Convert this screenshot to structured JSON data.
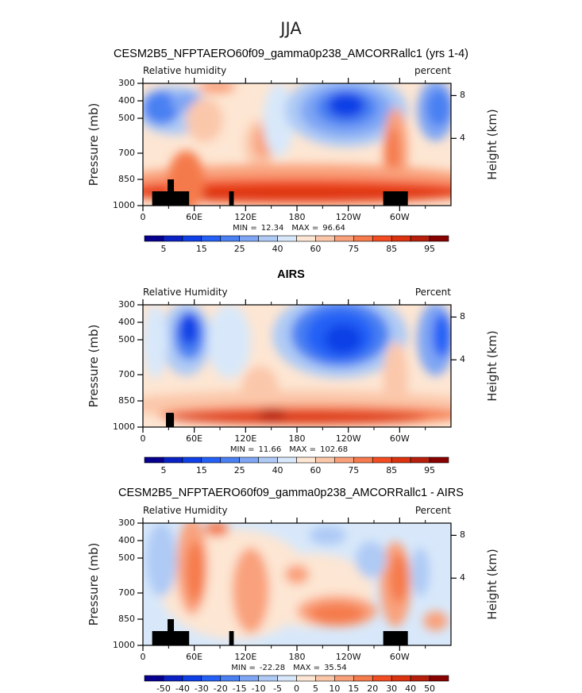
{
  "figure_title": "JJA",
  "chart_data": [
    {
      "type": "heatmap",
      "title": "CESM2B5_NFPTAERO60f09_gamma0p238_AMCORRallc1 (yrs 1-4)",
      "left_label": "Relative humidity",
      "right_label": "percent",
      "ylabel": "Pressure (mb)",
      "y2label": "Height (km)",
      "xticks": [
        "0",
        "60E",
        "120E",
        "180",
        "120W",
        "60W"
      ],
      "yticks": [
        "300",
        "400",
        "500",
        "700",
        "850",
        "1000"
      ],
      "ylim": [
        1000,
        300
      ],
      "y2ticks": [
        "8",
        "4"
      ],
      "min_max": {
        "min_label": "MIN =",
        "min": "12.34",
        "max_label": "MAX =",
        "max": "96.64"
      },
      "colorbar_labels": [
        "5",
        "15",
        "25",
        "40",
        "60",
        "75",
        "85",
        "95"
      ],
      "colorbar_label_every": 2
    },
    {
      "type": "heatmap",
      "title": "AIRS",
      "left_label": "Relative Humidity",
      "right_label": "Percent",
      "ylabel": "Pressure (mb)",
      "y2label": "Height (km)",
      "xticks": [
        "0",
        "60E",
        "120E",
        "180",
        "120W",
        "60W"
      ],
      "yticks": [
        "300",
        "400",
        "500",
        "700",
        "850",
        "1000"
      ],
      "ylim": [
        1000,
        300
      ],
      "y2ticks": [
        "8",
        "4"
      ],
      "min_max": {
        "min_label": "MIN =",
        "min": "11.66",
        "max_label": "MAX =",
        "max": "102.68"
      },
      "colorbar_labels": [
        "5",
        "15",
        "25",
        "40",
        "60",
        "75",
        "85",
        "95"
      ],
      "colorbar_label_every": 2
    },
    {
      "type": "heatmap",
      "title": "CESM2B5_NFPTAERO60f09_gamma0p238_AMCORRallc1 - AIRS",
      "left_label": "Relative Humidity",
      "right_label": "Percent",
      "ylabel": "Pressure (mb)",
      "y2label": "Height (km)",
      "xticks": [
        "0",
        "60E",
        "120E",
        "180",
        "120W",
        "60W"
      ],
      "yticks": [
        "300",
        "400",
        "500",
        "700",
        "850",
        "1000"
      ],
      "ylim": [
        1000,
        300
      ],
      "y2ticks": [
        "8",
        "4"
      ],
      "min_max": {
        "min_label": "MIN =",
        "min": "-22.28",
        "max_label": "MAX =",
        "max": "35.54"
      },
      "colorbar_labels": [
        "-50",
        "-40",
        "-30",
        "-20",
        "-15",
        "-10",
        "-5",
        "0",
        "5",
        "10",
        "15",
        "20",
        "30",
        "40",
        "50"
      ],
      "colorbar_label_every": 1
    }
  ],
  "colormap": [
    "#07008e",
    "#0a22c4",
    "#0f3fe6",
    "#2460f6",
    "#4a80f2",
    "#7fa6f4",
    "#aecaf5",
    "#d8e8fa",
    "#fde6d3",
    "#fbc7aa",
    "#f9a17b",
    "#f57a4c",
    "#f24d22",
    "#db320f",
    "#b61f0c",
    "#890202"
  ]
}
